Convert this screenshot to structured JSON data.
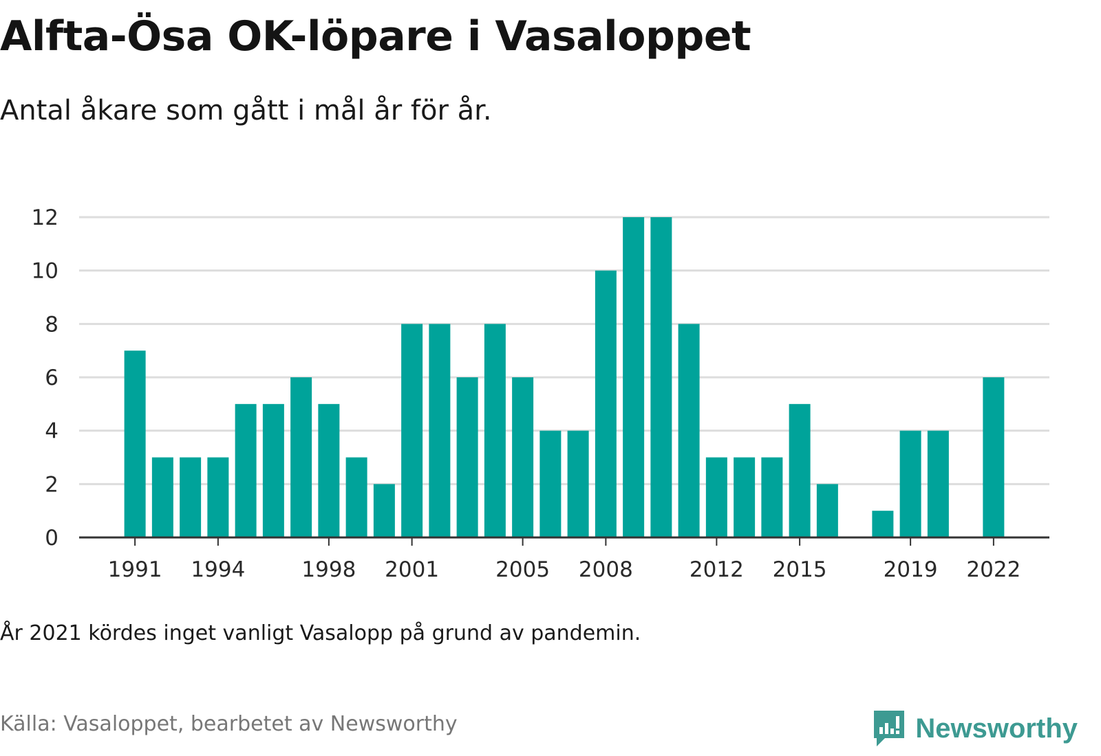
{
  "title": "Alfta-Ösa OK-löpare i Vasaloppet",
  "subtitle": "Antal åkare som gått i mål år för år.",
  "note": "År 2021 kördes inget vanligt Vasalopp på grund av pandemin.",
  "source": "Källa: Vasaloppet, bearbetet av Newsworthy",
  "brand": {
    "name": "Newsworthy",
    "icon": "newsworthy-logo-icon",
    "color": "#3d9a92"
  },
  "colors": {
    "bar": "#00a39a",
    "grid": "#dddddd",
    "axis": "#333333"
  },
  "chart_data": {
    "type": "bar",
    "categories": [
      1991,
      1992,
      1993,
      1994,
      1995,
      1996,
      1997,
      1998,
      1999,
      2000,
      2001,
      2002,
      2003,
      2004,
      2005,
      2006,
      2007,
      2008,
      2009,
      2010,
      2011,
      2012,
      2013,
      2014,
      2015,
      2016,
      2017,
      2018,
      2019,
      2020,
      2021,
      2022
    ],
    "values": [
      7,
      3,
      3,
      3,
      5,
      5,
      6,
      5,
      3,
      2,
      8,
      8,
      6,
      8,
      6,
      4,
      4,
      10,
      12,
      12,
      8,
      3,
      3,
      3,
      5,
      2,
      0,
      1,
      4,
      4,
      0,
      6
    ],
    "x_tick_labels": [
      "1991",
      "1994",
      "1998",
      "2001",
      "2005",
      "2008",
      "2012",
      "2015",
      "2019",
      "2022"
    ],
    "y_ticks": [
      "0",
      "2",
      "4",
      "6",
      "8",
      "10",
      "12"
    ],
    "ylim": [
      0,
      12
    ],
    "xlabel": "",
    "ylabel": "",
    "grid": true
  }
}
